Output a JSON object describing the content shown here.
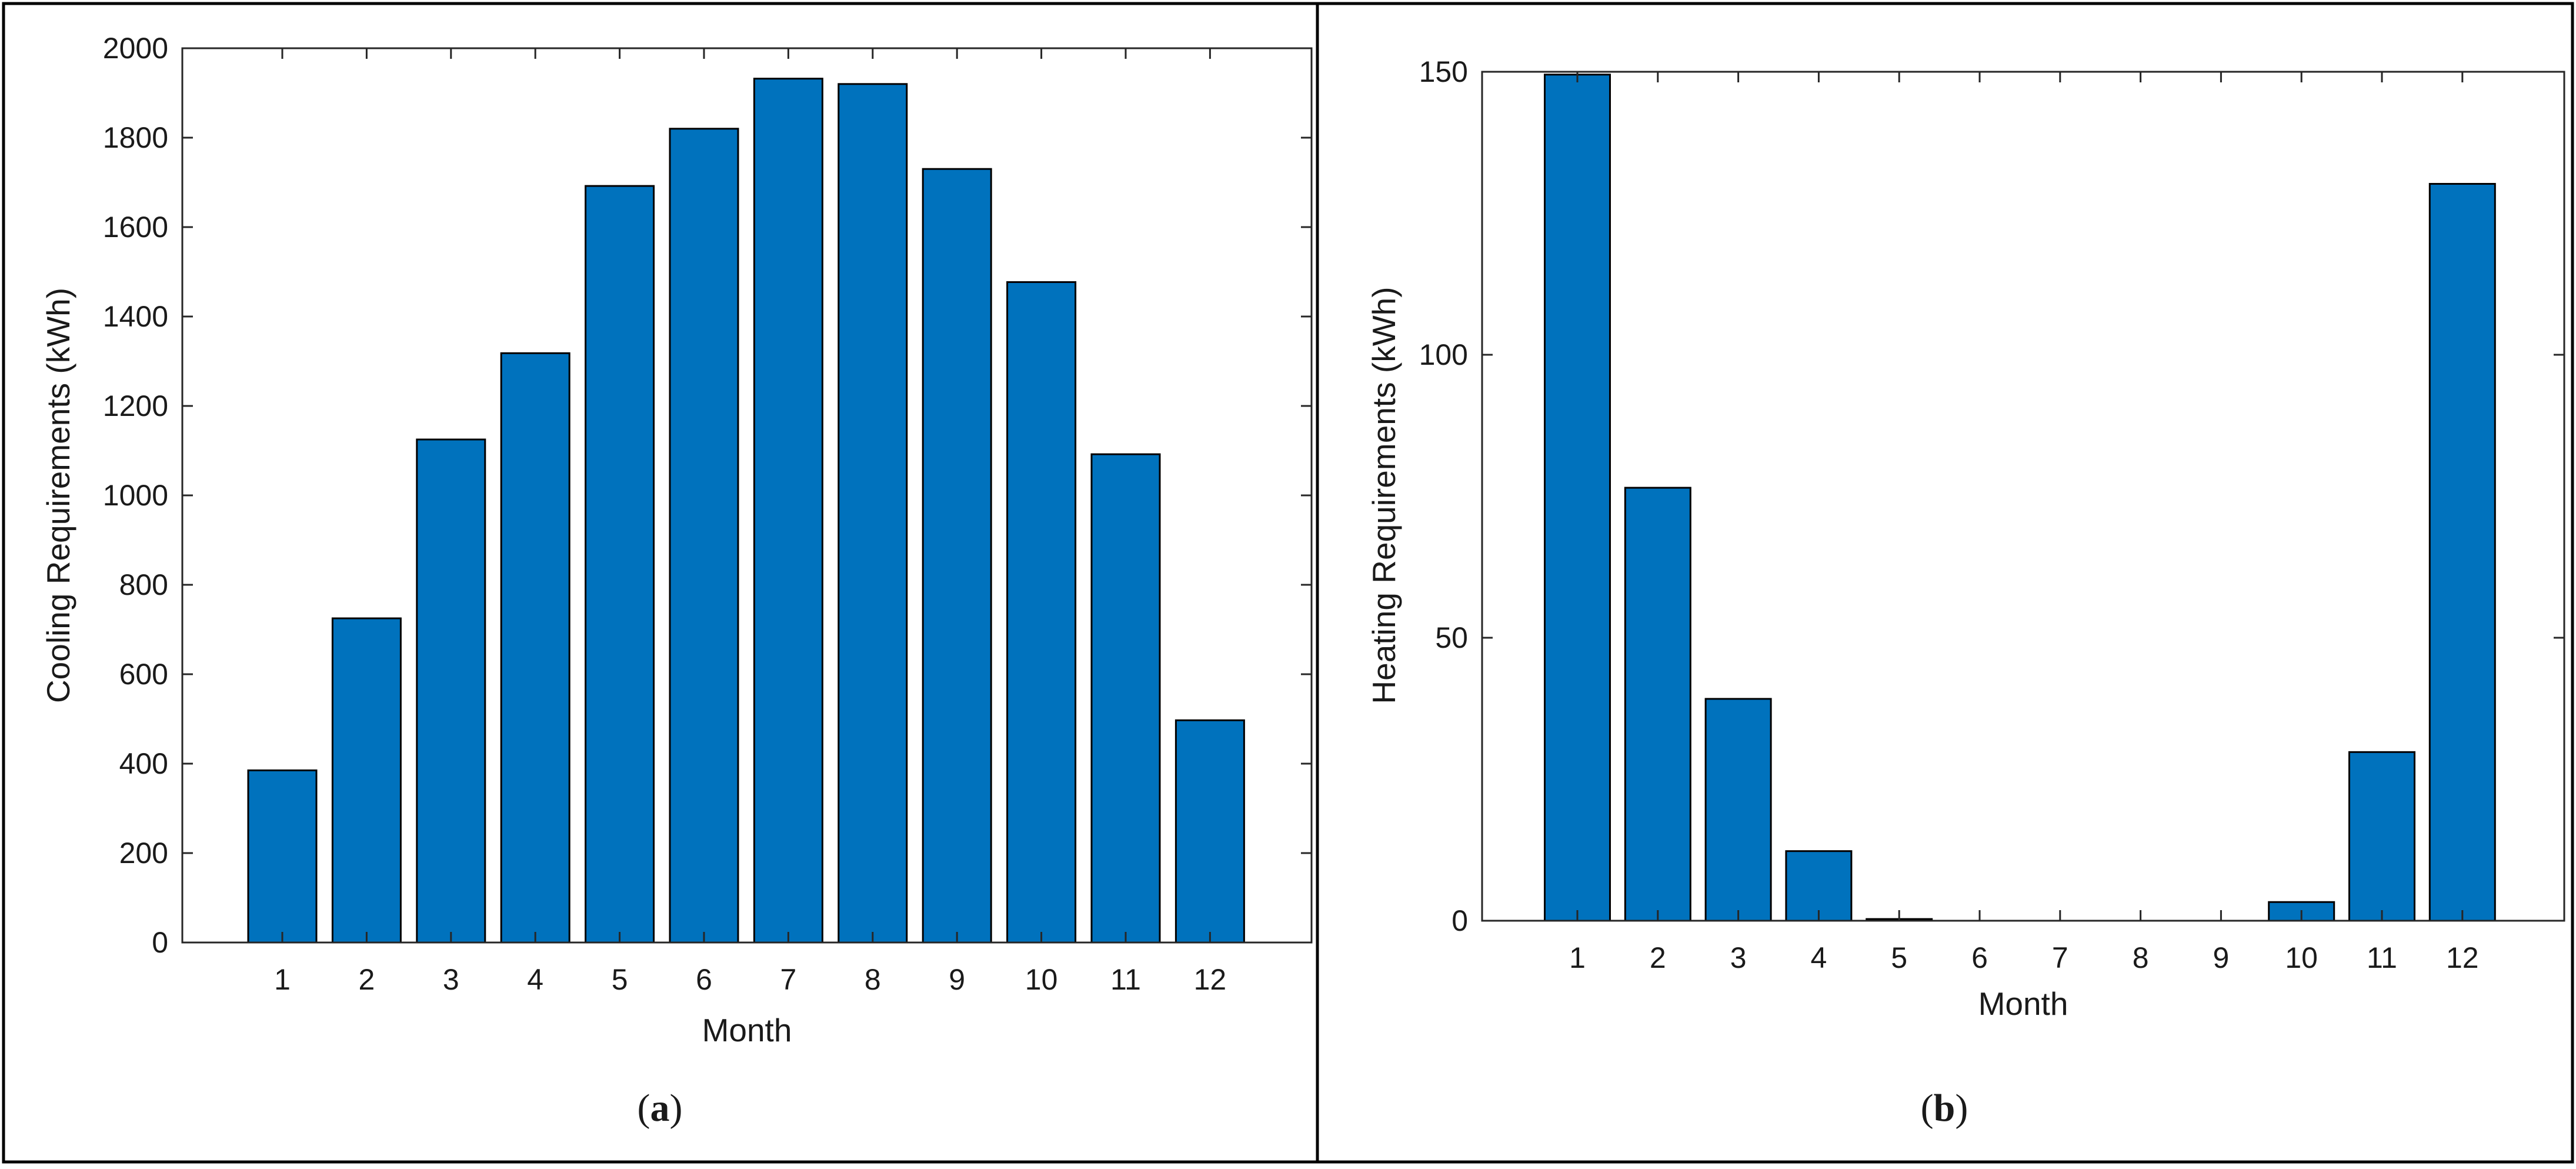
{
  "figure": {
    "panels": [
      {
        "caption_letter": "a"
      },
      {
        "caption_letter": "b"
      }
    ]
  },
  "chart_data": [
    {
      "type": "bar",
      "title": "",
      "xlabel": "Month",
      "ylabel": "Cooling Requirements (kWh)",
      "categories": [
        "1",
        "2",
        "3",
        "4",
        "5",
        "6",
        "7",
        "8",
        "9",
        "10",
        "11",
        "12"
      ],
      "values": [
        385,
        725,
        1125,
        1318,
        1692,
        1820,
        1932,
        1920,
        1730,
        1477,
        1092,
        497
      ],
      "ylim": [
        0,
        2000
      ],
      "yticks": [
        0,
        200,
        400,
        600,
        800,
        1000,
        1200,
        1400,
        1600,
        1800,
        2000
      ],
      "bar_color": "#0072BD",
      "grid": false
    },
    {
      "type": "bar",
      "title": "",
      "xlabel": "Month",
      "ylabel": "Heating Requirements (kWh)",
      "categories": [
        "1",
        "2",
        "3",
        "4",
        "5",
        "6",
        "7",
        "8",
        "9",
        "10",
        "11",
        "12"
      ],
      "values": [
        149.5,
        76.5,
        39.2,
        12.3,
        0.3,
        0,
        0,
        0,
        0,
        3.3,
        29.8,
        130.2
      ],
      "ylim": [
        0,
        150
      ],
      "yticks": [
        0,
        50,
        100,
        150
      ],
      "bar_color": "#0072BD",
      "grid": false
    }
  ]
}
